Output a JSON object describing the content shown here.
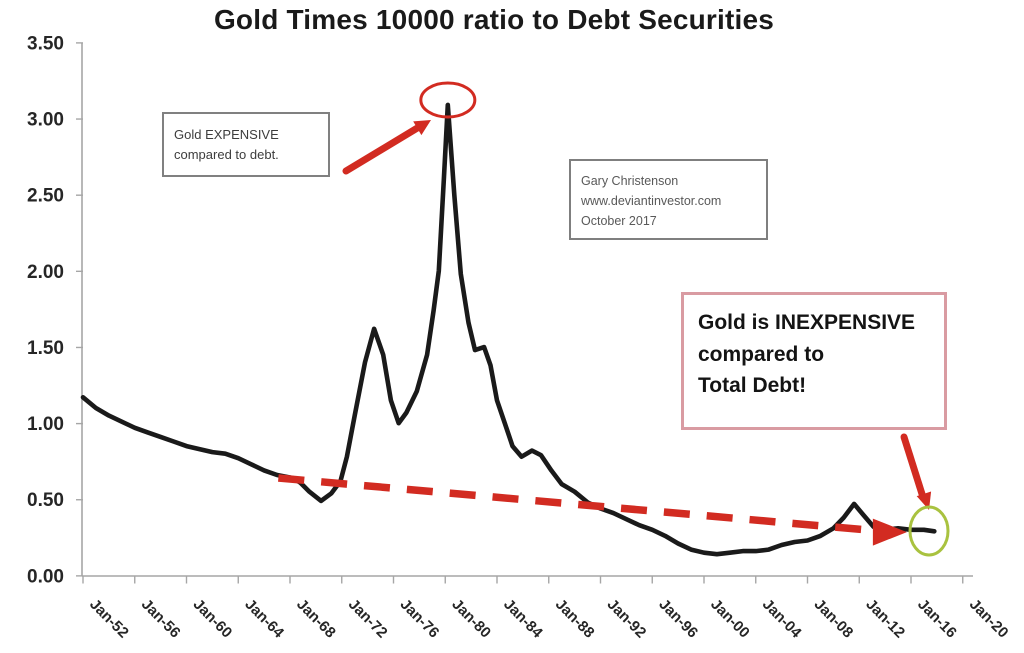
{
  "title": "Gold Times 10000 ratio to Debt Securities",
  "annotations": {
    "expensive_box": {
      "line1": "Gold EXPENSIVE",
      "line2": "compared to debt."
    },
    "credit_box": {
      "line1": "Gary Christenson",
      "line2": "www.deviantinvestor.com",
      "line3": "October 2017"
    },
    "inexpensive_box": {
      "line1": "Gold is INEXPENSIVE",
      "line2": "compared to",
      "line3": "Total Debt!"
    }
  },
  "colors": {
    "line": "#1a1a1a",
    "trend_red": "#d22b21",
    "low_circle_green": "#a9c23f",
    "peak_circle_red": "#d22b21",
    "axis_gray": "#a6a6a6",
    "tick_text": "#262626",
    "inexpensive_border_pink": "#d99ba2",
    "gray_box_border": "#7f7f7f"
  },
  "chart_data": {
    "type": "line",
    "title": "Gold Times 10000 ratio to Debt Securities",
    "xlabel": "",
    "ylabel": "",
    "grid": false,
    "legend": "none",
    "ylim": [
      0,
      3.5
    ],
    "xlim_years": [
      1952,
      2020
    ],
    "y_tick_labels": [
      "3.50",
      "3.00",
      "2.50",
      "2.00",
      "1.50",
      "1.00",
      "0.50",
      "0.00"
    ],
    "x_tick_labels": [
      "Jan-52",
      "Jan-56",
      "Jan-60",
      "Jan-64",
      "Jan-68",
      "Jan-72",
      "Jan-76",
      "Jan-80",
      "Jan-84",
      "Jan-88",
      "Jan-92",
      "Jan-96",
      "Jan-00",
      "Jan-04",
      "Jan-08",
      "Jan-12",
      "Jan-16",
      "Jan-20"
    ],
    "x_tick_years": [
      1952,
      1956,
      1960,
      1964,
      1968,
      1972,
      1976,
      1980,
      1984,
      1988,
      1992,
      1996,
      2000,
      2004,
      2008,
      2012,
      2016,
      2020
    ],
    "series": [
      {
        "name": "gold-to-debt-ratio",
        "style": "solid",
        "color": "#1a1a1a",
        "x": [
          1952,
          1953,
          1954,
          1955,
          1956,
          1957,
          1958,
          1959,
          1960,
          1961,
          1962,
          1963,
          1964,
          1965,
          1966,
          1967,
          1967.6,
          1968.2,
          1968.8,
          1969.5,
          1970.4,
          1971.2,
          1971.9,
          1972.4,
          1973,
          1973.8,
          1974.5,
          1975.2,
          1975.8,
          1976.4,
          1977,
          1977.8,
          1978.6,
          1979.1,
          1979.5,
          1979.9,
          1980.2,
          1980.7,
          1981.2,
          1981.8,
          1982.3,
          1983,
          1983.5,
          1984,
          1984.6,
          1985.2,
          1985.9,
          1986.7,
          1987.4,
          1988.2,
          1989,
          1990,
          1991,
          1992,
          1993,
          1994,
          1995,
          1996,
          1997,
          1998,
          1999,
          2000,
          2001,
          2002,
          2003,
          2004,
          2005,
          2006,
          2007,
          2008,
          2009,
          2010,
          2010.8,
          2011.6,
          2012.3,
          2013.1,
          2014,
          2015,
          2016,
          2017,
          2017.8
        ],
        "y": [
          1.17,
          1.1,
          1.05,
          1.01,
          0.97,
          0.94,
          0.91,
          0.88,
          0.85,
          0.83,
          0.81,
          0.8,
          0.77,
          0.73,
          0.69,
          0.66,
          0.65,
          0.64,
          0.61,
          0.55,
          0.49,
          0.54,
          0.62,
          0.78,
          1.05,
          1.4,
          1.62,
          1.45,
          1.15,
          1.0,
          1.07,
          1.21,
          1.45,
          1.74,
          2.0,
          2.62,
          3.09,
          2.5,
          1.98,
          1.66,
          1.48,
          1.5,
          1.38,
          1.15,
          1.0,
          0.85,
          0.78,
          0.82,
          0.79,
          0.69,
          0.6,
          0.55,
          0.48,
          0.44,
          0.41,
          0.37,
          0.33,
          0.3,
          0.26,
          0.21,
          0.17,
          0.15,
          0.14,
          0.15,
          0.16,
          0.16,
          0.17,
          0.2,
          0.22,
          0.23,
          0.26,
          0.31,
          0.38,
          0.47,
          0.4,
          0.32,
          0.3,
          0.31,
          0.3,
          0.3,
          0.29
        ]
      },
      {
        "name": "declining-trend-dashed",
        "style": "dashed-arrow",
        "color": "#d22b21",
        "x": [
          1967.1,
          2014.6
        ],
        "y": [
          0.64,
          0.285
        ]
      }
    ],
    "figure_annotations": [
      {
        "name": "peak-circle",
        "shape": "ellipse",
        "color": "#d22b21",
        "x": 1980.2,
        "y": 3.12
      },
      {
        "name": "peak-arrow",
        "shape": "arrow",
        "color": "#d22b21",
        "points_to": "1980 peak"
      },
      {
        "name": "low-circle",
        "shape": "ellipse",
        "color": "#a9c23f",
        "x": 2017.4,
        "y": 0.29
      },
      {
        "name": "inexpensive-arrow",
        "shape": "arrow",
        "color": "#d22b21",
        "points_to": "2017 low"
      }
    ]
  }
}
